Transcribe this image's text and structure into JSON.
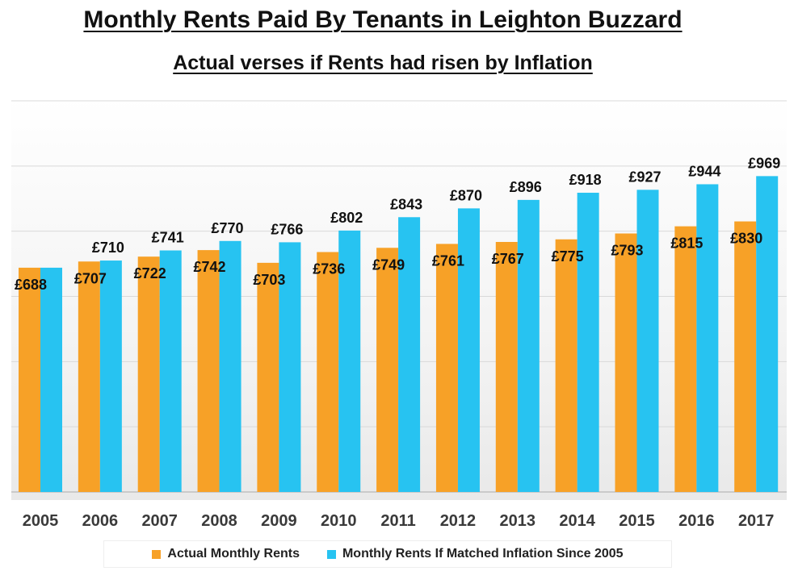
{
  "chart_data": {
    "type": "bar",
    "title": "Monthly Rents Paid By Tenants in Leighton Buzzard",
    "subtitle": "Actual verses if Rents had risen by Inflation",
    "xlabel": "",
    "ylabel": "",
    "categories": [
      "2005",
      "2006",
      "2007",
      "2008",
      "2009",
      "2010",
      "2011",
      "2012",
      "2013",
      "2014",
      "2015",
      "2016",
      "2017"
    ],
    "series": [
      {
        "name": "Actual Monthly Rents",
        "color": "#f7a127",
        "values": [
          688,
          707,
          722,
          742,
          703,
          736,
          749,
          761,
          767,
          775,
          793,
          815,
          830
        ],
        "labels": [
          "£688",
          "£707",
          "£722",
          "£742",
          "£703",
          "£736",
          "£749",
          "£761",
          "£767",
          "£775",
          "£793",
          "£815",
          "£830"
        ]
      },
      {
        "name": "Monthly Rents If Matched Inflation Since 2005",
        "color": "#27c3f1",
        "values": [
          688,
          710,
          741,
          770,
          766,
          802,
          843,
          870,
          896,
          918,
          927,
          944,
          969
        ],
        "labels": [
          "",
          "£710",
          "£741",
          "£770",
          "£766",
          "£802",
          "£843",
          "£870",
          "£896",
          "£918",
          "£927",
          "£944",
          "£969"
        ]
      }
    ],
    "ylim": [
      0,
      1200
    ],
    "grid": true,
    "legend": "bottom"
  }
}
